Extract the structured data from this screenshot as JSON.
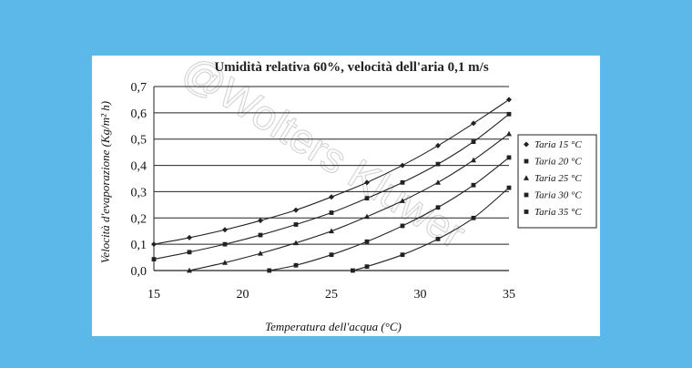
{
  "chart_data": {
    "type": "line",
    "title": "Umidità relativa 60%, velocità dell'aria 0,1 m/s",
    "xlabel": "Temperatura dell'acqua (°C)",
    "ylabel": "Velocità d'evaporazione (Kg/m² h)",
    "xlim": [
      15,
      35
    ],
    "ylim": [
      0,
      0.7
    ],
    "xticks": [
      "15",
      "20",
      "25",
      "30",
      "35"
    ],
    "yticks": [
      "0,0",
      "0,1",
      "0,2",
      "0,3",
      "0,4",
      "0,5",
      "0,6",
      "0,7"
    ],
    "grid": "horizontal",
    "legend_position": "right",
    "series": [
      {
        "name": "Taria 15 °C",
        "marker": "diamond",
        "x": [
          15,
          17,
          19,
          21,
          23,
          25,
          27,
          29,
          31,
          33,
          35
        ],
        "y": [
          0.1,
          0.125,
          0.155,
          0.19,
          0.23,
          0.28,
          0.335,
          0.4,
          0.475,
          0.56,
          0.65
        ]
      },
      {
        "name": "Taria 20 °C",
        "marker": "square",
        "x": [
          15,
          17,
          19,
          21,
          23,
          25,
          27,
          29,
          31,
          33,
          35
        ],
        "y": [
          0.043,
          0.07,
          0.1,
          0.135,
          0.175,
          0.22,
          0.275,
          0.335,
          0.405,
          0.49,
          0.595
        ]
      },
      {
        "name": "Taria 25 °C",
        "marker": "triangle",
        "x": [
          17,
          19,
          21,
          23,
          25,
          27,
          29,
          31,
          33,
          35
        ],
        "y": [
          0.0,
          0.03,
          0.065,
          0.105,
          0.15,
          0.205,
          0.265,
          0.335,
          0.42,
          0.52
        ]
      },
      {
        "name": "Taria 30 °C",
        "marker": "square",
        "x": [
          21.5,
          23,
          25,
          27,
          29,
          31,
          33,
          35
        ],
        "y": [
          0.0,
          0.02,
          0.06,
          0.11,
          0.17,
          0.24,
          0.325,
          0.43
        ]
      },
      {
        "name": "Taria 35 °C",
        "marker": "square",
        "x": [
          26.2,
          27,
          29,
          31,
          33,
          35
        ],
        "y": [
          0.0,
          0.015,
          0.06,
          0.12,
          0.2,
          0.315
        ]
      }
    ],
    "watermark": "@Wolters Kluwer"
  }
}
